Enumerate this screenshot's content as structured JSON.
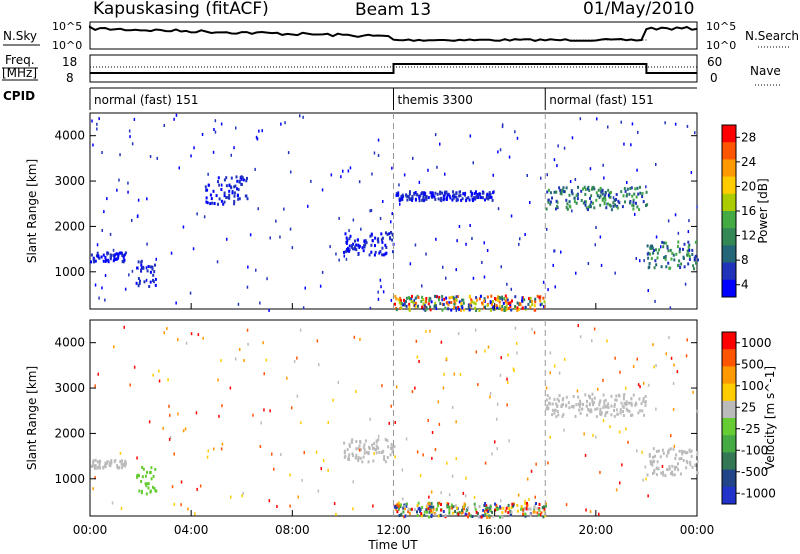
{
  "header": {
    "station": "Kapuskasing (fitACF)",
    "beam": "Beam 13",
    "date": "01/May/2010"
  },
  "top_panels": {
    "nsky_label": "N.Sky",
    "nsky_ticks": [
      "10^5",
      "10^0"
    ],
    "nsearch_label": "N.Search",
    "nsearch_ticks": [
      "10^5",
      "10^0"
    ],
    "freq_label": "Freq.",
    "freq_unit": "[MHz]",
    "freq_ticks": [
      "18",
      "8"
    ],
    "nave_label": "Nave",
    "nave_ticks": [
      "60",
      "0"
    ],
    "cpid_label": "CPID",
    "cpid_segments": [
      {
        "label": "normal (fast) 151",
        "start": 0,
        "end": 12
      },
      {
        "label": "themis 3300",
        "start": 12,
        "end": 18
      },
      {
        "label": "normal (fast) 151",
        "start": 18,
        "end": 24
      }
    ]
  },
  "chart_data": [
    {
      "type": "heatmap",
      "name": "power",
      "ylabel": "Slant Range [km]",
      "xlim": [
        0,
        24
      ],
      "ylim": [
        180,
        4500
      ],
      "yticks": [
        1000,
        2000,
        3000,
        4000
      ],
      "colorbar": {
        "label": "Power [dB]",
        "ticks": [
          "28",
          "24",
          "20",
          "16",
          "12",
          "8",
          "4"
        ],
        "colors": [
          "#0000ff",
          "#2233bb",
          "#226677",
          "#338855",
          "#44aa44",
          "#aacc00",
          "#ffcc00",
          "#ff9900",
          "#ff5500",
          "#ff0000"
        ]
      },
      "echo_regions": [
        {
          "t": [
            0.0,
            1.4
          ],
          "range": [
            1250,
            1450
          ],
          "level": "low"
        },
        {
          "t": [
            1.8,
            2.6
          ],
          "range": [
            700,
            1300
          ],
          "level": "low"
        },
        {
          "t": [
            4.5,
            6.2
          ],
          "range": [
            2500,
            3200
          ],
          "level": "low"
        },
        {
          "t": [
            10.0,
            12.0
          ],
          "range": [
            1400,
            1900
          ],
          "level": "low"
        },
        {
          "t": [
            12.0,
            18.0
          ],
          "range": [
            180,
            500
          ],
          "level": "high"
        },
        {
          "t": [
            12.0,
            16.0
          ],
          "range": [
            2600,
            2800
          ],
          "level": "low"
        },
        {
          "t": [
            18.0,
            22.0
          ],
          "range": [
            2400,
            2900
          ],
          "level": "medium"
        },
        {
          "t": [
            22.0,
            24.0
          ],
          "range": [
            1100,
            1700
          ],
          "level": "medium"
        }
      ]
    },
    {
      "type": "heatmap",
      "name": "velocity",
      "ylabel": "Slant Range [km]",
      "xlabel": "Time UT",
      "xlim": [
        0,
        24
      ],
      "ylim": [
        180,
        4500
      ],
      "yticks": [
        1000,
        2000,
        3000,
        4000
      ],
      "xticks": [
        "00:00",
        "04:00",
        "08:00",
        "12:00",
        "16:00",
        "20:00",
        "00:00"
      ],
      "colorbar": {
        "label": "Velocity [m s^-1]",
        "ticks": [
          "1000",
          "500",
          "100",
          "25",
          "-25",
          "-100",
          "-500",
          "-1000"
        ],
        "colors": [
          "#2233cc",
          "#224488",
          "#337755",
          "#44aa44",
          "#66cc33",
          "#bbbbbb",
          "#ffcc00",
          "#ff9900",
          "#ff5500",
          "#ff0000"
        ]
      },
      "echo_regions": [
        {
          "t": [
            0.0,
            1.4
          ],
          "range": [
            1250,
            1450
          ],
          "level": "ground"
        },
        {
          "t": [
            1.8,
            2.6
          ],
          "range": [
            700,
            1300
          ],
          "level": "green"
        },
        {
          "t": [
            10.0,
            12.0
          ],
          "range": [
            1400,
            1900
          ],
          "level": "ground"
        },
        {
          "t": [
            12.0,
            18.0
          ],
          "range": [
            180,
            500
          ],
          "level": "mixed"
        },
        {
          "t": [
            18.0,
            22.0
          ],
          "range": [
            2400,
            2900
          ],
          "level": "ground"
        },
        {
          "t": [
            22.0,
            24.0
          ],
          "range": [
            1100,
            1700
          ],
          "level": "ground"
        }
      ]
    }
  ]
}
